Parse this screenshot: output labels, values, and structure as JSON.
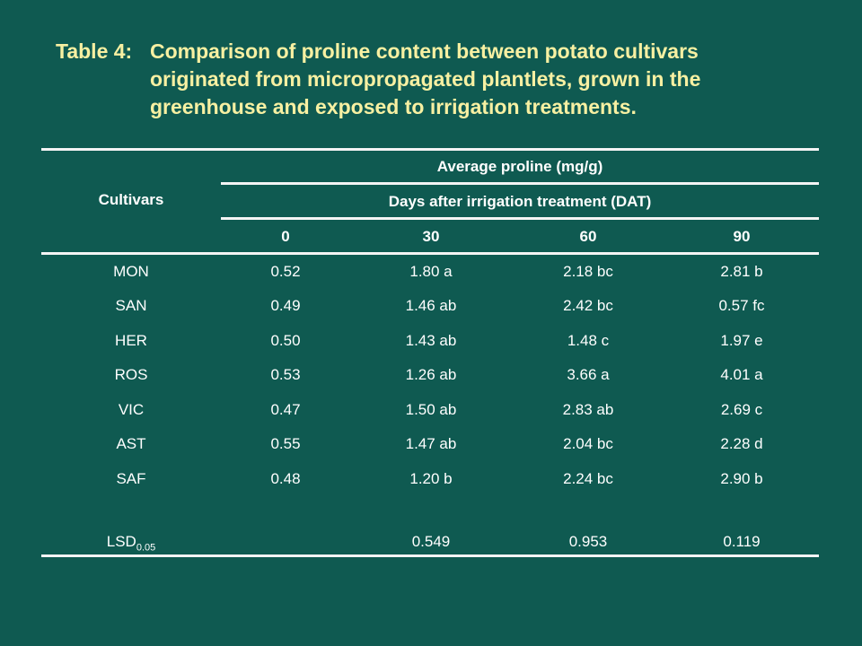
{
  "slide": {
    "title_label": "Table 4:",
    "title_lines": [
      "Comparison of proline content between potato cultivars",
      "originated from micropropagated plantlets, grown in the",
      "greenhouse and exposed to irrigation treatments."
    ],
    "background_color": "#0f5a51",
    "title_color": "#f7f0a2"
  },
  "table": {
    "row_header": "Cultivars",
    "group_header": "Average proline (mg/g)",
    "sub_header": "Days after irrigation treatment (DAT)",
    "columns": [
      "0",
      "30",
      "60",
      "90"
    ],
    "rows": [
      {
        "cultivar": "MON",
        "values": [
          "0.52",
          "1.80 a",
          "2.18 bc",
          "2.81 b"
        ]
      },
      {
        "cultivar": "SAN",
        "values": [
          "0.49",
          "1.46 ab",
          "2.42 bc",
          "0.57 fc"
        ]
      },
      {
        "cultivar": "HER",
        "values": [
          "0.50",
          "1.43 ab",
          "1.48 c",
          "1.97 e"
        ]
      },
      {
        "cultivar": "ROS",
        "values": [
          "0.53",
          "1.26 ab",
          "3.66 a",
          "4.01 a"
        ]
      },
      {
        "cultivar": "VIC",
        "values": [
          "0.47",
          "1.50 ab",
          "2.83 ab",
          "2.69 c"
        ]
      },
      {
        "cultivar": "AST",
        "values": [
          "0.55",
          "1.47 ab",
          "2.04 bc",
          "2.28 d"
        ]
      },
      {
        "cultivar": "SAF",
        "values": [
          "0.48",
          "1.20 b",
          "2.24 bc",
          "2.90 b"
        ]
      }
    ],
    "lsd": {
      "label": "LSD",
      "subscript": "0.05",
      "values": [
        "",
        "0.549",
        "0.953",
        "0.119"
      ]
    }
  }
}
